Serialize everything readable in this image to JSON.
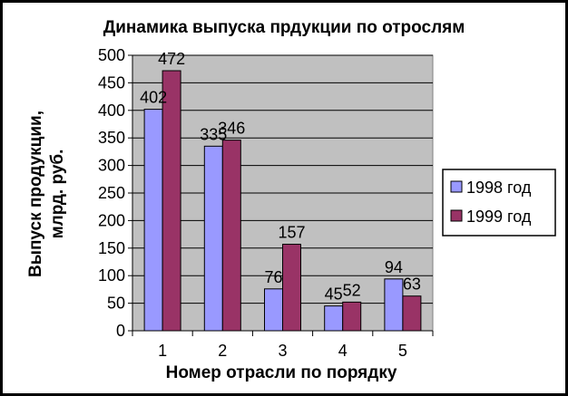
{
  "chart_data": {
    "type": "bar",
    "title": "Динамика выпуска прдукции по отрослям",
    "xlabel": "Номер отрасли по порядку",
    "ylabel_lines": [
      "Выпуск продукции,",
      "млрд. руб."
    ],
    "categories": [
      "1",
      "2",
      "3",
      "4",
      "5"
    ],
    "series": [
      {
        "name": "1998 год",
        "values": [
          402,
          335,
          76,
          45,
          94
        ],
        "color": "#9999ff"
      },
      {
        "name": "1999 год",
        "values": [
          472,
          346,
          157,
          52,
          63
        ],
        "color": "#993366"
      }
    ],
    "ylim": [
      0,
      500
    ],
    "yticks": [
      "0",
      "50",
      "100",
      "150",
      "200",
      "250",
      "300",
      "350",
      "400",
      "450",
      "500"
    ],
    "grid": true,
    "plot_background": "#c0c0c0",
    "legend_position": "right"
  }
}
